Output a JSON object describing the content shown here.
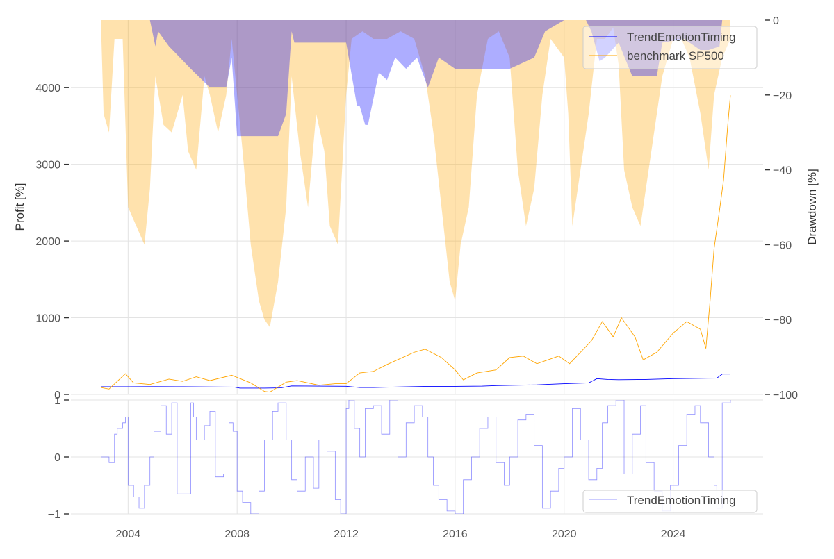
{
  "chart_data": [
    {
      "id": "profit-drawdown",
      "type": "line",
      "title": "",
      "xlabel": "",
      "ylabel": "Profit [%]",
      "y2label": "Drawdown [%]",
      "xlim": [
        2001.9,
        2027.3
      ],
      "ylim": [
        0,
        4880
      ],
      "y2lim": [
        -100,
        0
      ],
      "yticks": [
        0,
        1000,
        2000,
        3000,
        4000
      ],
      "y2ticks": [
        0,
        -20,
        -40,
        -60,
        -80,
        -100
      ],
      "y2ticklabels": [
        "0",
        "−20",
        "−40",
        "−60",
        "−80",
        "−100"
      ],
      "grid": true,
      "legend": {
        "position": "top-right",
        "entries": [
          {
            "label": "TrendEmotionTiming",
            "color": "#0000ff"
          },
          {
            "label": "benchmark SP500",
            "color": "#ffa500"
          }
        ]
      },
      "series": [
        {
          "name": "TrendEmotionTiming",
          "axis": "left",
          "color": "#0000ff",
          "x": [
            2003.0,
            2004.0,
            2005.0,
            2006.0,
            2007.0,
            2007.9,
            2008.1,
            2009.0,
            2009.6,
            2010.0,
            2011.0,
            2012.0,
            2012.5,
            2013.0,
            2014.0,
            2015.0,
            2016.0,
            2017.0,
            2017.5,
            2018.0,
            2019.0,
            2020.0,
            2020.9,
            2021.2,
            2021.6,
            2022.0,
            2023.0,
            2024.0,
            2025.0,
            2025.6,
            2025.8,
            2026.1
          ],
          "values": [
            100,
            100,
            101,
            100,
            98,
            96,
            82,
            82,
            85,
            110,
            108,
            106,
            90,
            90,
            98,
            105,
            105,
            108,
            115,
            118,
            125,
            140,
            150,
            205,
            195,
            192,
            195,
            205,
            210,
            212,
            265,
            265
          ]
        },
        {
          "name": "benchmark SP500",
          "axis": "left",
          "color": "#ffa500",
          "x": [
            2003.0,
            2003.3,
            2003.9,
            2004.2,
            2004.8,
            2005.5,
            2006.0,
            2006.5,
            2007.0,
            2007.8,
            2008.5,
            2009.0,
            2009.2,
            2009.8,
            2010.2,
            2011.0,
            2011.6,
            2012.0,
            2012.5,
            2013.0,
            2013.5,
            2014.0,
            2014.5,
            2014.9,
            2015.5,
            2016.0,
            2016.3,
            2016.8,
            2017.5,
            2018.0,
            2018.5,
            2019.0,
            2019.8,
            2020.2,
            2020.6,
            2021.0,
            2021.4,
            2021.8,
            2022.1,
            2022.6,
            2022.9,
            2023.4,
            2024.0,
            2024.5,
            2025.0,
            2025.2,
            2025.35,
            2025.5,
            2025.7,
            2025.85,
            2026.0,
            2026.1
          ],
          "values": [
            90,
            70,
            270,
            150,
            130,
            200,
            170,
            230,
            180,
            250,
            150,
            40,
            30,
            160,
            180,
            120,
            140,
            140,
            280,
            300,
            390,
            470,
            550,
            590,
            480,
            320,
            190,
            280,
            320,
            480,
            500,
            400,
            500,
            400,
            550,
            700,
            950,
            750,
            1000,
            750,
            450,
            550,
            800,
            950,
            850,
            600,
            1200,
            1900,
            2400,
            2800,
            3500,
            3900
          ]
        },
        {
          "name": "TrendEmotionTiming drawdown",
          "axis": "right",
          "color": "#0000ff",
          "opacity": 0.32,
          "x": [
            2003.0,
            2004.8,
            2005.0,
            2005.1,
            2005.5,
            2006.3,
            2007.0,
            2007.6,
            2007.8,
            2008.0,
            2008.05,
            2009.2,
            2009.5,
            2009.8,
            2010.0,
            2010.1,
            2011.5,
            2012.0,
            2012.4,
            2012.5,
            2012.7,
            2012.8,
            2013.2,
            2013.5,
            2013.8,
            2014.2,
            2014.6,
            2015.0,
            2015.4,
            2016.0,
            2017.0,
            2017.2,
            2018.0,
            2018.9,
            2019.3,
            2020.0,
            2020.8,
            2021.0,
            2021.3,
            2021.5,
            2022.0,
            2022.5,
            2023.0,
            2023.4,
            2023.6,
            2024.4,
            2025.0,
            2025.3,
            2025.7,
            2025.8
          ],
          "values": [
            0,
            0,
            -7,
            -3,
            -7,
            -13,
            -18,
            -18,
            -10,
            -31,
            -31,
            -31,
            -31,
            -25,
            -3,
            -6,
            -6,
            -6,
            -23,
            -23,
            -28,
            -28,
            -14,
            -16,
            -10,
            -13,
            -10,
            -18,
            -10,
            -13,
            -13,
            -13,
            -13,
            -10,
            -3,
            0,
            0,
            -3,
            -11,
            -10,
            -6,
            -15,
            -15,
            -15,
            -6,
            -5,
            -8,
            -8,
            -7,
            0
          ]
        },
        {
          "name": "benchmark SP500 drawdown",
          "axis": "right",
          "color": "#ffa500",
          "opacity": 0.32,
          "x": [
            2003.0,
            2003.1,
            2003.3,
            2003.5,
            2003.8,
            2004.0,
            2004.3,
            2004.6,
            2004.8,
            2005.0,
            2005.3,
            2005.6,
            2006.0,
            2006.2,
            2006.5,
            2006.8,
            2007.0,
            2007.3,
            2007.6,
            2007.8,
            2008.2,
            2008.5,
            2008.8,
            2009.0,
            2009.2,
            2009.5,
            2009.8,
            2010.0,
            2010.3,
            2010.6,
            2010.9,
            2011.2,
            2011.4,
            2011.7,
            2012.0,
            2012.2,
            2012.6,
            2013.0,
            2013.5,
            2014.0,
            2014.5,
            2014.9,
            2015.2,
            2015.5,
            2015.8,
            2016.0,
            2016.2,
            2016.5,
            2016.8,
            2017.2,
            2017.6,
            2018.0,
            2018.3,
            2018.6,
            2018.9,
            2019.2,
            2019.5,
            2020.0,
            2020.15,
            2020.3,
            2020.6,
            2020.9,
            2021.2,
            2021.5,
            2021.8,
            2022.0,
            2022.2,
            2022.5,
            2022.8,
            2023.0,
            2023.3,
            2023.6,
            2024.0,
            2024.3,
            2024.6,
            2025.0,
            2025.2,
            2025.3,
            2025.5,
            2025.8,
            2026.1
          ],
          "values": [
            0,
            -25,
            -30,
            -5,
            -5,
            -50,
            -55,
            -60,
            -45,
            -15,
            -28,
            -30,
            -20,
            -35,
            -40,
            -15,
            -20,
            -30,
            -20,
            -5,
            -35,
            -60,
            -75,
            -80,
            -82,
            -70,
            -50,
            -15,
            -35,
            -50,
            -25,
            -35,
            -55,
            -60,
            -20,
            -5,
            -3,
            -5,
            -5,
            -3,
            -5,
            -15,
            -30,
            -50,
            -70,
            -75,
            -60,
            -50,
            -20,
            -5,
            -3,
            -10,
            -40,
            -55,
            -45,
            -20,
            -5,
            -10,
            -25,
            -55,
            -40,
            -25,
            -5,
            -5,
            -2,
            -12,
            -40,
            -50,
            -55,
            -45,
            -30,
            -15,
            -5,
            -5,
            -10,
            -25,
            -35,
            -40,
            -20,
            -10,
            -5
          ]
        }
      ]
    },
    {
      "id": "timing-signal",
      "type": "line",
      "title": "",
      "xlabel": "",
      "ylabel": "",
      "xlim": [
        2001.9,
        2027.3
      ],
      "ylim": [
        -1,
        1
      ],
      "yticks": [
        -1,
        0,
        1
      ],
      "yticklabels": [
        "−1",
        "0",
        "1"
      ],
      "xticks": [
        2004,
        2008,
        2012,
        2016,
        2020,
        2024
      ],
      "xticklabels": [
        "2004",
        "2008",
        "2012",
        "2016",
        "2020",
        "2024"
      ],
      "grid": true,
      "legend": {
        "position": "bottom-right",
        "entries": [
          {
            "label": "TrendEmotionTiming",
            "color": "#0000ff"
          }
        ]
      },
      "series": [
        {
          "name": "TrendEmotionTiming",
          "color": "#0000ff",
          "opacity": 0.45,
          "x": [
            2003.0,
            2003.2,
            2003.3,
            2003.4,
            2003.5,
            2003.6,
            2003.8,
            2003.9,
            2004.0,
            2004.2,
            2004.4,
            2004.6,
            2004.8,
            2004.95,
            2005.2,
            2005.4,
            2005.6,
            2005.8,
            2006.0,
            2006.3,
            2006.4,
            2006.5,
            2006.8,
            2007.0,
            2007.2,
            2007.5,
            2007.7,
            2007.85,
            2008.0,
            2008.2,
            2008.5,
            2008.8,
            2009.0,
            2009.3,
            2009.5,
            2009.8,
            2010.0,
            2010.2,
            2010.5,
            2010.8,
            2011.0,
            2011.3,
            2011.6,
            2011.8,
            2012.0,
            2012.1,
            2012.3,
            2012.5,
            2012.7,
            2013.0,
            2013.3,
            2013.6,
            2013.9,
            2014.2,
            2014.5,
            2014.8,
            2015.0,
            2015.2,
            2015.4,
            2015.7,
            2016.0,
            2016.3,
            2016.6,
            2016.9,
            2017.2,
            2017.5,
            2017.8,
            2018.0,
            2018.3,
            2018.6,
            2018.9,
            2019.2,
            2019.5,
            2019.8,
            2020.0,
            2020.3,
            2020.6,
            2020.9,
            2021.2,
            2021.4,
            2021.6,
            2021.9,
            2022.2,
            2022.5,
            2022.8,
            2023.0,
            2023.3,
            2023.6,
            2023.9,
            2024.2,
            2024.5,
            2024.8,
            2025.0,
            2025.3,
            2025.5,
            2025.6,
            2025.8,
            2026.1
          ],
          "values": [
            0,
            0,
            -0.1,
            -0.1,
            0.4,
            0.5,
            0.6,
            0.7,
            -0.5,
            -0.7,
            -0.9,
            -0.5,
            0,
            0.45,
            0.9,
            0.4,
            0.95,
            -0.65,
            -0.65,
            0.95,
            0.7,
            0.3,
            0.55,
            0.8,
            -0.35,
            -0.3,
            0.6,
            0.45,
            -0.6,
            -0.8,
            -1.0,
            -0.6,
            0.3,
            0.8,
            0.95,
            0.3,
            -0.4,
            -0.6,
            0,
            -0.55,
            0.3,
            0.1,
            -0.75,
            -1.0,
            0.85,
            1.0,
            0.5,
            0,
            0.85,
            0.9,
            0.4,
            1.0,
            0,
            0.6,
            0.9,
            0.7,
            0,
            -0.5,
            -0.75,
            -0.95,
            -1.0,
            -0.4,
            0,
            0.5,
            0.7,
            -0.1,
            -0.5,
            0,
            0.65,
            0.75,
            0.2,
            -0.9,
            -0.6,
            -0.2,
            0,
            0.85,
            0.3,
            -0.4,
            -0.2,
            0.6,
            0.9,
            1.0,
            -0.3,
            0.4,
            0.9,
            -0.1,
            -0.6,
            -0.95,
            -0.5,
            0.2,
            0.75,
            0.9,
            0.6,
            0,
            -0.5,
            -0.9,
            0.95,
            1.0
          ]
        }
      ]
    }
  ]
}
